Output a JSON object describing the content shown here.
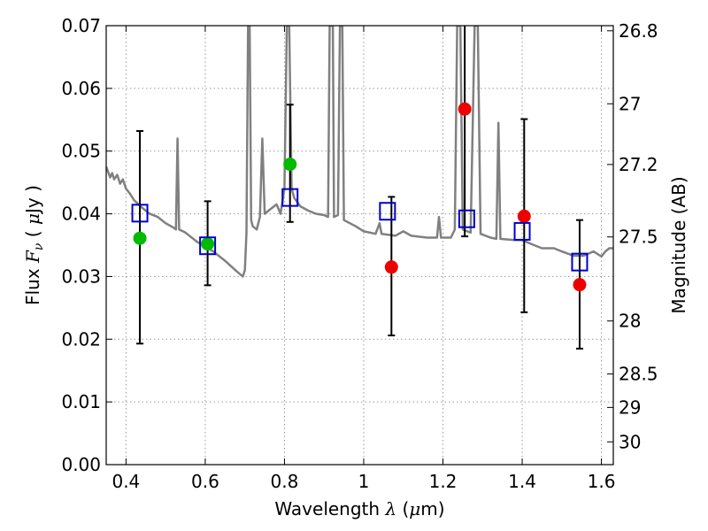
{
  "chart_data": {
    "type": "scatter",
    "xlabel": {
      "prefix": "Wavelength ",
      "symbol": "λ",
      "unit_open": " (",
      "unit_mu": "μ",
      "unit_close": "m)"
    },
    "ylabel": {
      "prefix": "Flux ",
      "symbol": "F",
      "subscript": "ν",
      "unit_open": " ( ",
      "unit_mu": "μ",
      "unit_close": "Jy )"
    },
    "y2label": "Magnitude (AB)",
    "xlim": [
      0.35,
      1.63
    ],
    "ylim": [
      0.0,
      0.07
    ],
    "grid": true,
    "x_ticks": [
      "0.4",
      "0.6",
      "0.8",
      "1",
      "1.2",
      "1.4",
      "1.6"
    ],
    "y_ticks": [
      "0.00",
      "0.01",
      "0.02",
      "0.03",
      "0.04",
      "0.05",
      "0.06",
      "0.07"
    ],
    "y2_ticks": [
      {
        "label": "26.8",
        "mag": 26.8
      },
      {
        "label": "27",
        "mag": 27.0
      },
      {
        "label": "27.2",
        "mag": 27.2
      },
      {
        "label": "27.5",
        "mag": 27.5
      },
      {
        "label": "28",
        "mag": 28.0
      },
      {
        "label": "28.5",
        "mag": 28.5
      },
      {
        "label": "29",
        "mag": 29.0
      },
      {
        "label": "30",
        "mag": 30.0
      }
    ],
    "colors": {
      "model_spectrum": "#808080",
      "model_photometry": "#0000cc",
      "observed_optical": "#00bb00",
      "observed_nir": "#ee0000",
      "errorbar": "#000000",
      "grid": "#999999"
    },
    "model_photometry": [
      {
        "x": 0.435,
        "y": 0.0401
      },
      {
        "x": 0.606,
        "y": 0.0349
      },
      {
        "x": 0.814,
        "y": 0.0426
      },
      {
        "x": 1.06,
        "y": 0.0404
      },
      {
        "x": 1.26,
        "y": 0.0392
      },
      {
        "x": 1.4,
        "y": 0.0372
      },
      {
        "x": 1.545,
        "y": 0.0323
      }
    ],
    "observations": [
      {
        "x": 0.435,
        "y": 0.0361,
        "yerr_low": 0.0193,
        "yerr_high": 0.0532,
        "band": "optical"
      },
      {
        "x": 0.606,
        "y": 0.0352,
        "yerr_low": 0.0286,
        "yerr_high": 0.042,
        "band": "optical"
      },
      {
        "x": 0.814,
        "y": 0.0479,
        "yerr_low": 0.0387,
        "yerr_high": 0.0574,
        "band": "optical"
      },
      {
        "x": 1.07,
        "y": 0.0315,
        "yerr_low": 0.0206,
        "yerr_high": 0.0427,
        "band": "nir"
      },
      {
        "x": 1.255,
        "y": 0.0567,
        "yerr_low": 0.0364,
        "yerr_high": 0.07,
        "band": "nir"
      },
      {
        "x": 1.405,
        "y": 0.0396,
        "yerr_low": 0.0243,
        "yerr_high": 0.0551,
        "band": "nir"
      },
      {
        "x": 1.545,
        "y": 0.0287,
        "yerr_low": 0.0185,
        "yerr_high": 0.039,
        "band": "nir"
      }
    ],
    "model_spectrum": [
      [
        0.35,
        0.0475
      ],
      [
        0.36,
        0.0458
      ],
      [
        0.365,
        0.0465
      ],
      [
        0.37,
        0.0455
      ],
      [
        0.378,
        0.0462
      ],
      [
        0.385,
        0.0448
      ],
      [
        0.392,
        0.0455
      ],
      [
        0.4,
        0.044
      ],
      [
        0.41,
        0.0432
      ],
      [
        0.42,
        0.0422
      ],
      [
        0.44,
        0.041
      ],
      [
        0.46,
        0.04
      ],
      [
        0.48,
        0.0395
      ],
      [
        0.5,
        0.0385
      ],
      [
        0.52,
        0.0378
      ],
      [
        0.526,
        0.0375
      ],
      [
        0.53,
        0.052
      ],
      [
        0.534,
        0.0375
      ],
      [
        0.55,
        0.037
      ],
      [
        0.58,
        0.0355
      ],
      [
        0.6,
        0.0348
      ],
      [
        0.62,
        0.034
      ],
      [
        0.65,
        0.0325
      ],
      [
        0.68,
        0.0308
      ],
      [
        0.695,
        0.03
      ],
      [
        0.7,
        0.031
      ],
      [
        0.704,
        0.037
      ],
      [
        0.708,
        0.07
      ],
      [
        0.712,
        0.07
      ],
      [
        0.716,
        0.039
      ],
      [
        0.72,
        0.038
      ],
      [
        0.73,
        0.0375
      ],
      [
        0.738,
        0.0395
      ],
      [
        0.744,
        0.052
      ],
      [
        0.75,
        0.04
      ],
      [
        0.76,
        0.0405
      ],
      [
        0.78,
        0.0415
      ],
      [
        0.79,
        0.04
      ],
      [
        0.8,
        0.044
      ],
      [
        0.806,
        0.07
      ],
      [
        0.812,
        0.07
      ],
      [
        0.818,
        0.044
      ],
      [
        0.825,
        0.0425
      ],
      [
        0.84,
        0.0412
      ],
      [
        0.86,
        0.0405
      ],
      [
        0.88,
        0.04
      ],
      [
        0.9,
        0.0398
      ],
      [
        0.91,
        0.0395
      ],
      [
        0.914,
        0.07
      ],
      [
        0.922,
        0.07
      ],
      [
        0.925,
        0.0395
      ],
      [
        0.935,
        0.0398
      ],
      [
        0.94,
        0.07
      ],
      [
        0.946,
        0.07
      ],
      [
        0.95,
        0.039
      ],
      [
        0.98,
        0.038
      ],
      [
        1.0,
        0.0372
      ],
      [
        1.03,
        0.0368
      ],
      [
        1.04,
        0.0385
      ],
      [
        1.045,
        0.0368
      ],
      [
        1.08,
        0.0365
      ],
      [
        1.1,
        0.0372
      ],
      [
        1.12,
        0.0365
      ],
      [
        1.16,
        0.0362
      ],
      [
        1.185,
        0.0362
      ],
      [
        1.19,
        0.0395
      ],
      [
        1.195,
        0.0362
      ],
      [
        1.22,
        0.0362
      ],
      [
        1.23,
        0.0375
      ],
      [
        1.236,
        0.07
      ],
      [
        1.244,
        0.07
      ],
      [
        1.25,
        0.0375
      ],
      [
        1.27,
        0.037
      ],
      [
        1.28,
        0.07
      ],
      [
        1.288,
        0.07
      ],
      [
        1.295,
        0.0368
      ],
      [
        1.32,
        0.0362
      ],
      [
        1.335,
        0.036
      ],
      [
        1.34,
        0.0545
      ],
      [
        1.345,
        0.036
      ],
      [
        1.38,
        0.0358
      ],
      [
        1.4,
        0.0358
      ],
      [
        1.43,
        0.035
      ],
      [
        1.45,
        0.0345
      ],
      [
        1.48,
        0.0345
      ],
      [
        1.5,
        0.034
      ],
      [
        1.53,
        0.0333
      ],
      [
        1.555,
        0.0333
      ],
      [
        1.58,
        0.034
      ],
      [
        1.6,
        0.0332
      ],
      [
        1.61,
        0.034
      ],
      [
        1.62,
        0.0345
      ],
      [
        1.63,
        0.0345
      ]
    ]
  }
}
